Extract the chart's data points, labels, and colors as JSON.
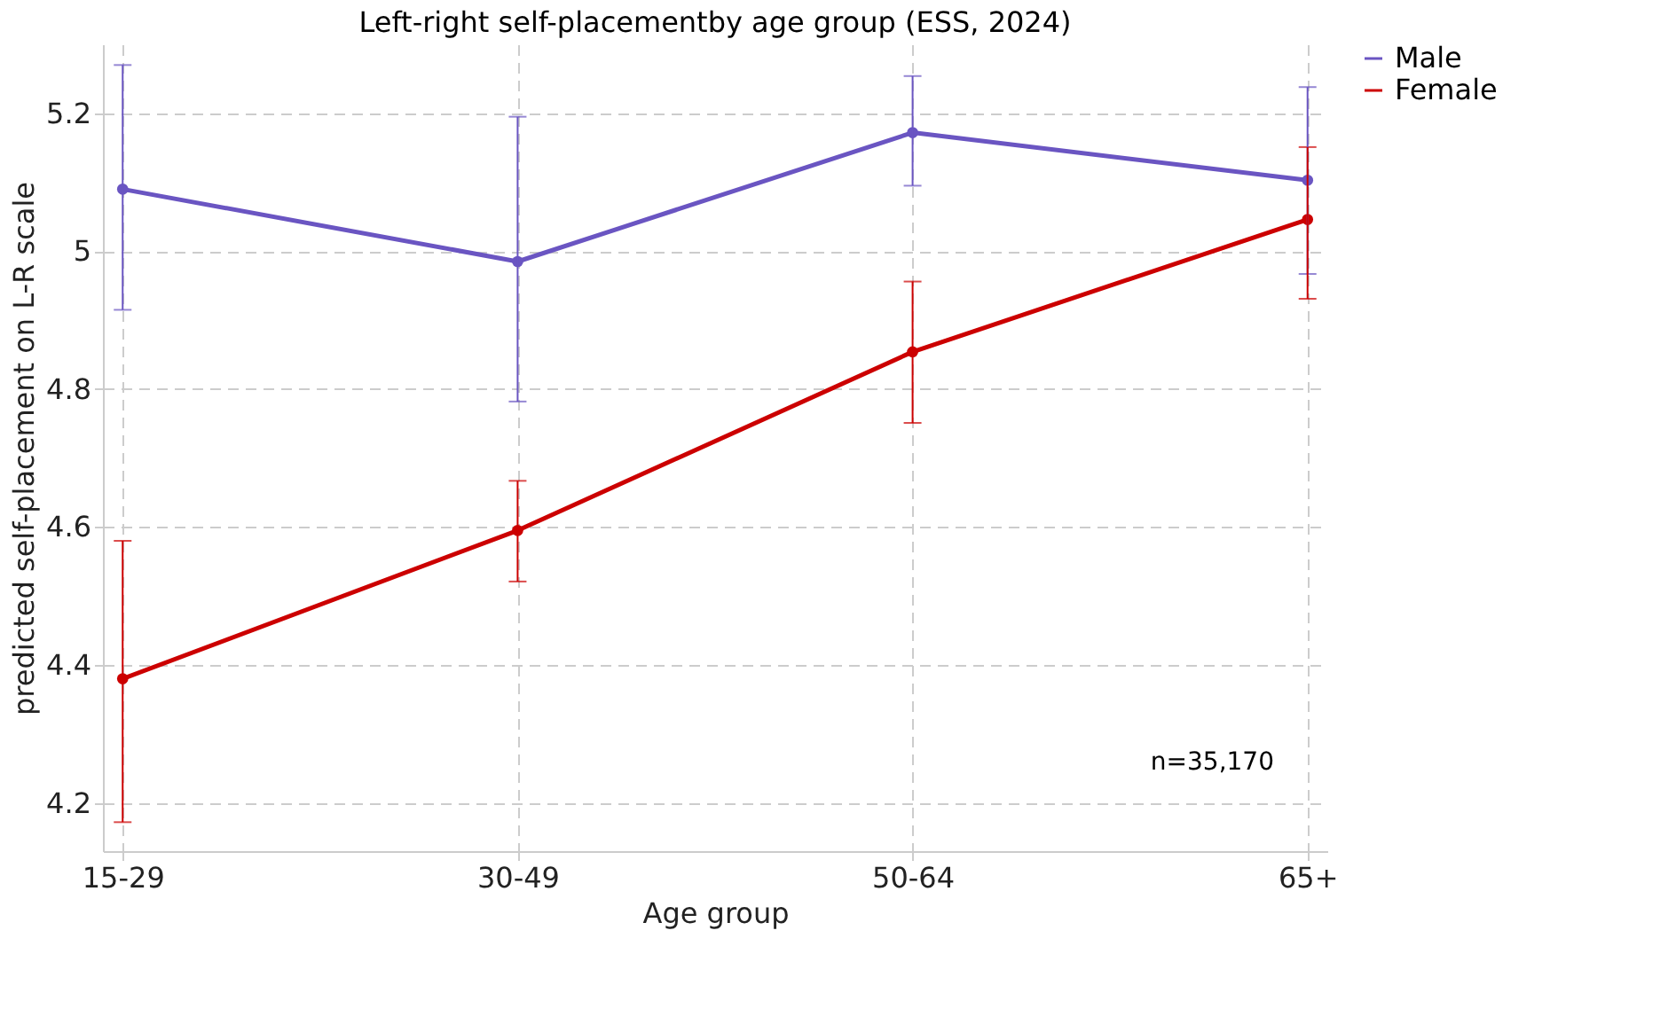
{
  "chart_data": {
    "type": "line",
    "title": "Left-right self-placementby age group (ESS, 2024)",
    "xlabel": "Age group",
    "ylabel": "predicted self-placement on L-R scale",
    "categories": [
      "15-29",
      "30-49",
      "50-64",
      "65+"
    ],
    "series": [
      {
        "name": "Male",
        "color": "#6a55c2",
        "values": [
          5.09,
          4.985,
          5.172,
          5.103
        ],
        "errors": [
          [
            4.915,
            5.27
          ],
          [
            4.782,
            5.195
          ],
          [
            5.095,
            5.254
          ],
          [
            4.967,
            5.238
          ]
        ]
      },
      {
        "name": "Female",
        "color": "#cc0000",
        "values": [
          4.38,
          4.595,
          4.854,
          5.046
        ],
        "errors": [
          [
            4.172,
            4.58
          ],
          [
            4.521,
            4.667
          ],
          [
            4.751,
            4.956
          ],
          [
            4.931,
            5.151
          ]
        ]
      }
    ],
    "ylim": [
      4.13,
      5.3
    ],
    "yticks": [
      4.2,
      4.4,
      4.6,
      4.8,
      {
        "value": 5,
        "label": "5"
      },
      5.2
    ],
    "annotations": [
      "n=35,170"
    ],
    "grid": true,
    "legend": "top right",
    "marker": "circle",
    "line_style": "solid"
  }
}
